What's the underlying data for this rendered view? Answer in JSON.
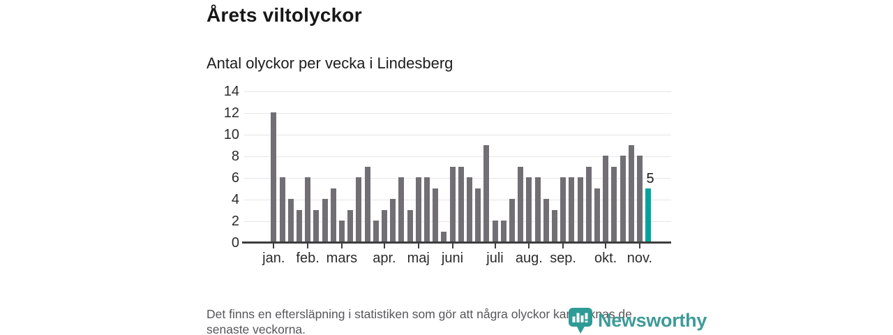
{
  "chart_data": {
    "type": "bar",
    "title": "Årets viltolyckor",
    "subtitle": "Antal olyckor per vecka i Lindesberg",
    "values": [
      12,
      6,
      4,
      3,
      6,
      3,
      4,
      5,
      2,
      3,
      6,
      7,
      2,
      3,
      4,
      6,
      3,
      6,
      6,
      5,
      1,
      7,
      7,
      6,
      5,
      9,
      2,
      2,
      4,
      7,
      6,
      6,
      4,
      3,
      6,
      6,
      6,
      7,
      5,
      8,
      7,
      8,
      9,
      8,
      5
    ],
    "highlighted_last_bar": {
      "value": 5,
      "annotation": "5"
    },
    "yticks": [
      0,
      2,
      4,
      6,
      8,
      10,
      12,
      14
    ],
    "ylim": [
      0,
      14
    ],
    "grid": "horizontal",
    "legend": "none",
    "bar_color": "#716F74",
    "highlight_color": "#00A39C",
    "month_labels": [
      "jan.",
      "feb.",
      "mars",
      "apr.",
      "maj",
      "juni",
      "juli",
      "aug.",
      "sep.",
      "okt.",
      "nov."
    ],
    "month_tick_bar_index": [
      0,
      4,
      8,
      13,
      17,
      21,
      26,
      30,
      34,
      39,
      43
    ]
  },
  "footer": {
    "line1": "Det finns en eftersläpning i statistiken som gör att några olyckor kan saknas de",
    "line2": "senaste veckorna."
  },
  "logo": {
    "text": "Newsworthy",
    "icon": "newsworthy-bubble-chart-pin-icon",
    "color": "#3E9B99"
  }
}
